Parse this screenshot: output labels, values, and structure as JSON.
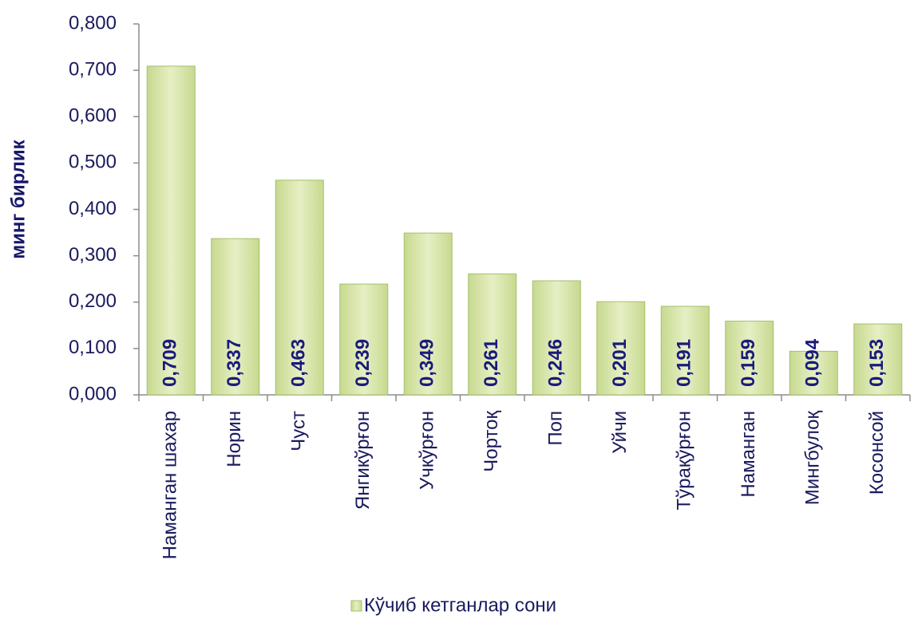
{
  "chart_data": {
    "type": "bar",
    "y_label": "минг бирлик",
    "categories": [
      "Наманган шахар",
      "Норин",
      "Чуст",
      "Янгикўрғон",
      "Учкўрғон",
      "Чортоқ",
      "Поп",
      "Уйчи",
      "Тўрақўрғон",
      "Наманган",
      "Мингбулоқ",
      "Косонсой"
    ],
    "series": [
      {
        "name": "Кўчиб кетганлар сони",
        "color": "#d3e2a0",
        "values": [
          0.709,
          0.337,
          0.463,
          0.239,
          0.349,
          0.261,
          0.246,
          0.201,
          0.191,
          0.159,
          0.094,
          0.153
        ],
        "value_labels": [
          "0,709",
          "0,337",
          "0,463",
          "0,239",
          "0,349",
          "0,261",
          "0,246",
          "0,201",
          "0,191",
          "0,159",
          "0,094",
          "0,153"
        ]
      }
    ],
    "ylim": [
      0,
      0.8
    ],
    "yticks": [
      {
        "value": 0,
        "label": "0,000"
      },
      {
        "value": 0.1,
        "label": "0,100"
      },
      {
        "value": 0.2,
        "label": "0,200"
      },
      {
        "value": 0.3,
        "label": "0,300"
      },
      {
        "value": 0.4,
        "label": "0,400"
      },
      {
        "value": 0.5,
        "label": "0,500"
      },
      {
        "value": 0.6,
        "label": "0,600"
      },
      {
        "value": 0.7,
        "label": "0,700"
      },
      {
        "value": 0.8,
        "label": "0,800"
      }
    ],
    "grid": false,
    "legend": "bottom"
  }
}
